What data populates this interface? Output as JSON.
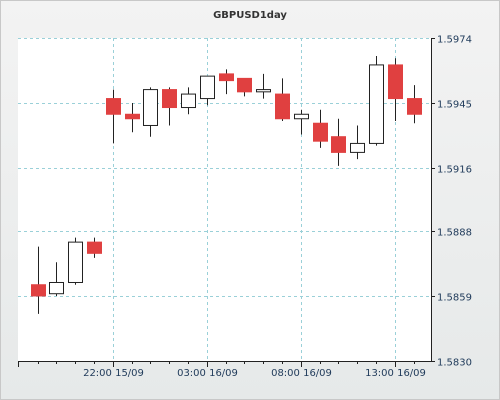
{
  "chart_data": {
    "type": "candlestick",
    "title": "GBPUSD1day",
    "ylim": [
      1.583,
      1.5974
    ],
    "y_ticks": [
      "1.5974",
      "1.5945",
      "1.5916",
      "1.5888",
      "1.5859",
      "1.5830"
    ],
    "x_ticks": [
      "22:00 15/09",
      "03:00 16/09",
      "08:00 16/09",
      "13:00 16/09"
    ],
    "grid": true,
    "colors": {
      "up": "#ffffff",
      "down": "#e04040",
      "wick": "#222222",
      "grid": "#9ad0d8",
      "axis": "#222222"
    },
    "candles": [
      {
        "open": 1.5864,
        "high": 1.5881,
        "low": 1.5851,
        "close": 1.5859
      },
      {
        "open": 1.586,
        "high": 1.5874,
        "low": 1.5859,
        "close": 1.5865
      },
      {
        "open": 1.5865,
        "high": 1.5885,
        "low": 1.5864,
        "close": 1.5883
      },
      {
        "open": 1.5883,
        "high": 1.5885,
        "low": 1.5876,
        "close": 1.5878
      },
      {
        "open": 1.5947,
        "high": 1.5951,
        "low": 1.5927,
        "close": 1.594
      },
      {
        "open": 1.594,
        "high": 1.5945,
        "low": 1.5932,
        "close": 1.5938
      },
      {
        "open": 1.5935,
        "high": 1.5952,
        "low": 1.593,
        "close": 1.5951
      },
      {
        "open": 1.5951,
        "high": 1.5952,
        "low": 1.5935,
        "close": 1.5943
      },
      {
        "open": 1.5943,
        "high": 1.5952,
        "low": 1.594,
        "close": 1.5949
      },
      {
        "open": 1.5947,
        "high": 1.5957,
        "low": 1.5944,
        "close": 1.5957
      },
      {
        "open": 1.5958,
        "high": 1.596,
        "low": 1.5949,
        "close": 1.5955
      },
      {
        "open": 1.5956,
        "high": 1.5956,
        "low": 1.5948,
        "close": 1.595
      },
      {
        "open": 1.595,
        "high": 1.5958,
        "low": 1.5947,
        "close": 1.5951
      },
      {
        "open": 1.5949,
        "high": 1.5956,
        "low": 1.5937,
        "close": 1.5938
      },
      {
        "open": 1.5938,
        "high": 1.5942,
        "low": 1.5931,
        "close": 1.594
      },
      {
        "open": 1.5936,
        "high": 1.5942,
        "low": 1.5925,
        "close": 1.5928
      },
      {
        "open": 1.593,
        "high": 1.5938,
        "low": 1.5917,
        "close": 1.5923
      },
      {
        "open": 1.5923,
        "high": 1.5935,
        "low": 1.592,
        "close": 1.5927
      },
      {
        "open": 1.5927,
        "high": 1.5966,
        "low": 1.5926,
        "close": 1.5962
      },
      {
        "open": 1.5962,
        "high": 1.5965,
        "low": 1.5937,
        "close": 1.5947
      },
      {
        "open": 1.5947,
        "high": 1.5953,
        "low": 1.5936,
        "close": 1.594
      }
    ]
  }
}
